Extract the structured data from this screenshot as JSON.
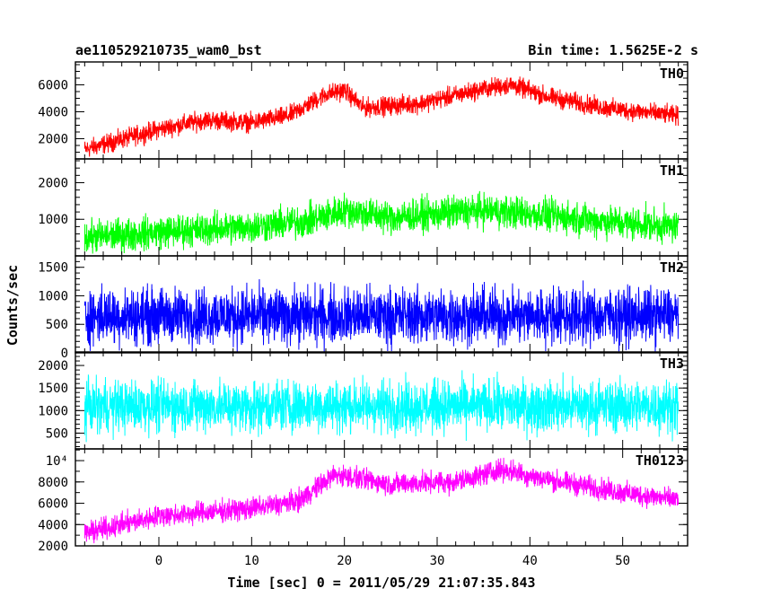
{
  "header": {
    "obs_id": "ae110529210735_wam0_bst",
    "bin_time": "Bin time: 1.5625E-2 s"
  },
  "axes": {
    "ylabel": "Counts/sec",
    "xlabel": "Time [sec] 0 = 2011/05/29 21:07:35.843"
  },
  "colors": {
    "TH0": "#ff0000",
    "TH1": "#00ff00",
    "TH2": "#0000ff",
    "TH3": "#00ffff",
    "TH0123": "#ff00ff"
  },
  "chart_data": {
    "type": "line",
    "xlim": [
      -9,
      57
    ],
    "x_data_range": [
      -8,
      56
    ],
    "x_ticks": [
      0,
      10,
      20,
      30,
      40,
      50
    ],
    "x_minor_step": 2,
    "panels": [
      {
        "name": "TH0",
        "ylim": [
          500,
          7700
        ],
        "y_ticks": [
          2000,
          4000,
          6000
        ],
        "y_tick_labels": [
          "2000",
          "4000",
          "6000"
        ],
        "y_minor_step": 500,
        "color": "#ff0000",
        "trend": [
          [
            -8,
            1200
          ],
          [
            0,
            2700
          ],
          [
            5,
            3400
          ],
          [
            10,
            3200
          ],
          [
            14,
            3700
          ],
          [
            18,
            5300
          ],
          [
            20,
            5600
          ],
          [
            22,
            4300
          ],
          [
            28,
            4600
          ],
          [
            35,
            5700
          ],
          [
            38,
            6000
          ],
          [
            42,
            5100
          ],
          [
            48,
            4300
          ],
          [
            56,
            3700
          ]
        ],
        "noise": 1700
      },
      {
        "name": "TH1",
        "ylim": [
          0,
          2650
        ],
        "y_ticks": [
          1000,
          2000
        ],
        "y_tick_labels": [
          "1000",
          "2000"
        ],
        "y_minor_step": 200,
        "color": "#00ff00",
        "trend": [
          [
            -8,
            500
          ],
          [
            0,
            650
          ],
          [
            10,
            800
          ],
          [
            16,
            950
          ],
          [
            20,
            1250
          ],
          [
            25,
            1050
          ],
          [
            35,
            1250
          ],
          [
            40,
            1150
          ],
          [
            50,
            900
          ],
          [
            56,
            800
          ]
        ],
        "noise": 1100
      },
      {
        "name": "TH2",
        "ylim": [
          0,
          1700
        ],
        "y_ticks": [
          0,
          500,
          1000,
          1500
        ],
        "y_tick_labels": [
          "0",
          "500",
          "1000",
          "1500"
        ],
        "y_minor_step": 100,
        "color": "#0000ff",
        "trend": [
          [
            -8,
            650
          ],
          [
            56,
            650
          ]
        ],
        "noise": 1200
      },
      {
        "name": "TH3",
        "ylim": [
          150,
          2300
        ],
        "y_ticks": [
          500,
          1000,
          1500,
          2000
        ],
        "y_tick_labels": [
          "500",
          "1000",
          "1500",
          "2000"
        ],
        "y_minor_step": 100,
        "color": "#00ffff",
        "trend": [
          [
            -8,
            1100
          ],
          [
            56,
            1100
          ]
        ],
        "noise": 1400
      },
      {
        "name": "TH0123",
        "ylim": [
          2000,
          11100
        ],
        "y_ticks": [
          2000,
          4000,
          6000,
          8000,
          10000
        ],
        "y_tick_labels": [
          "2000",
          "4000",
          "6000",
          "8000",
          "10⁴"
        ],
        "y_minor_step": 1000,
        "color": "#ff00ff",
        "trend": [
          [
            -8,
            3200
          ],
          [
            0,
            4800
          ],
          [
            10,
            5500
          ],
          [
            15,
            6200
          ],
          [
            19,
            8700
          ],
          [
            25,
            7800
          ],
          [
            32,
            8000
          ],
          [
            37,
            9200
          ],
          [
            42,
            8200
          ],
          [
            50,
            7000
          ],
          [
            56,
            6300
          ]
        ],
        "noise": 2500
      }
    ]
  }
}
